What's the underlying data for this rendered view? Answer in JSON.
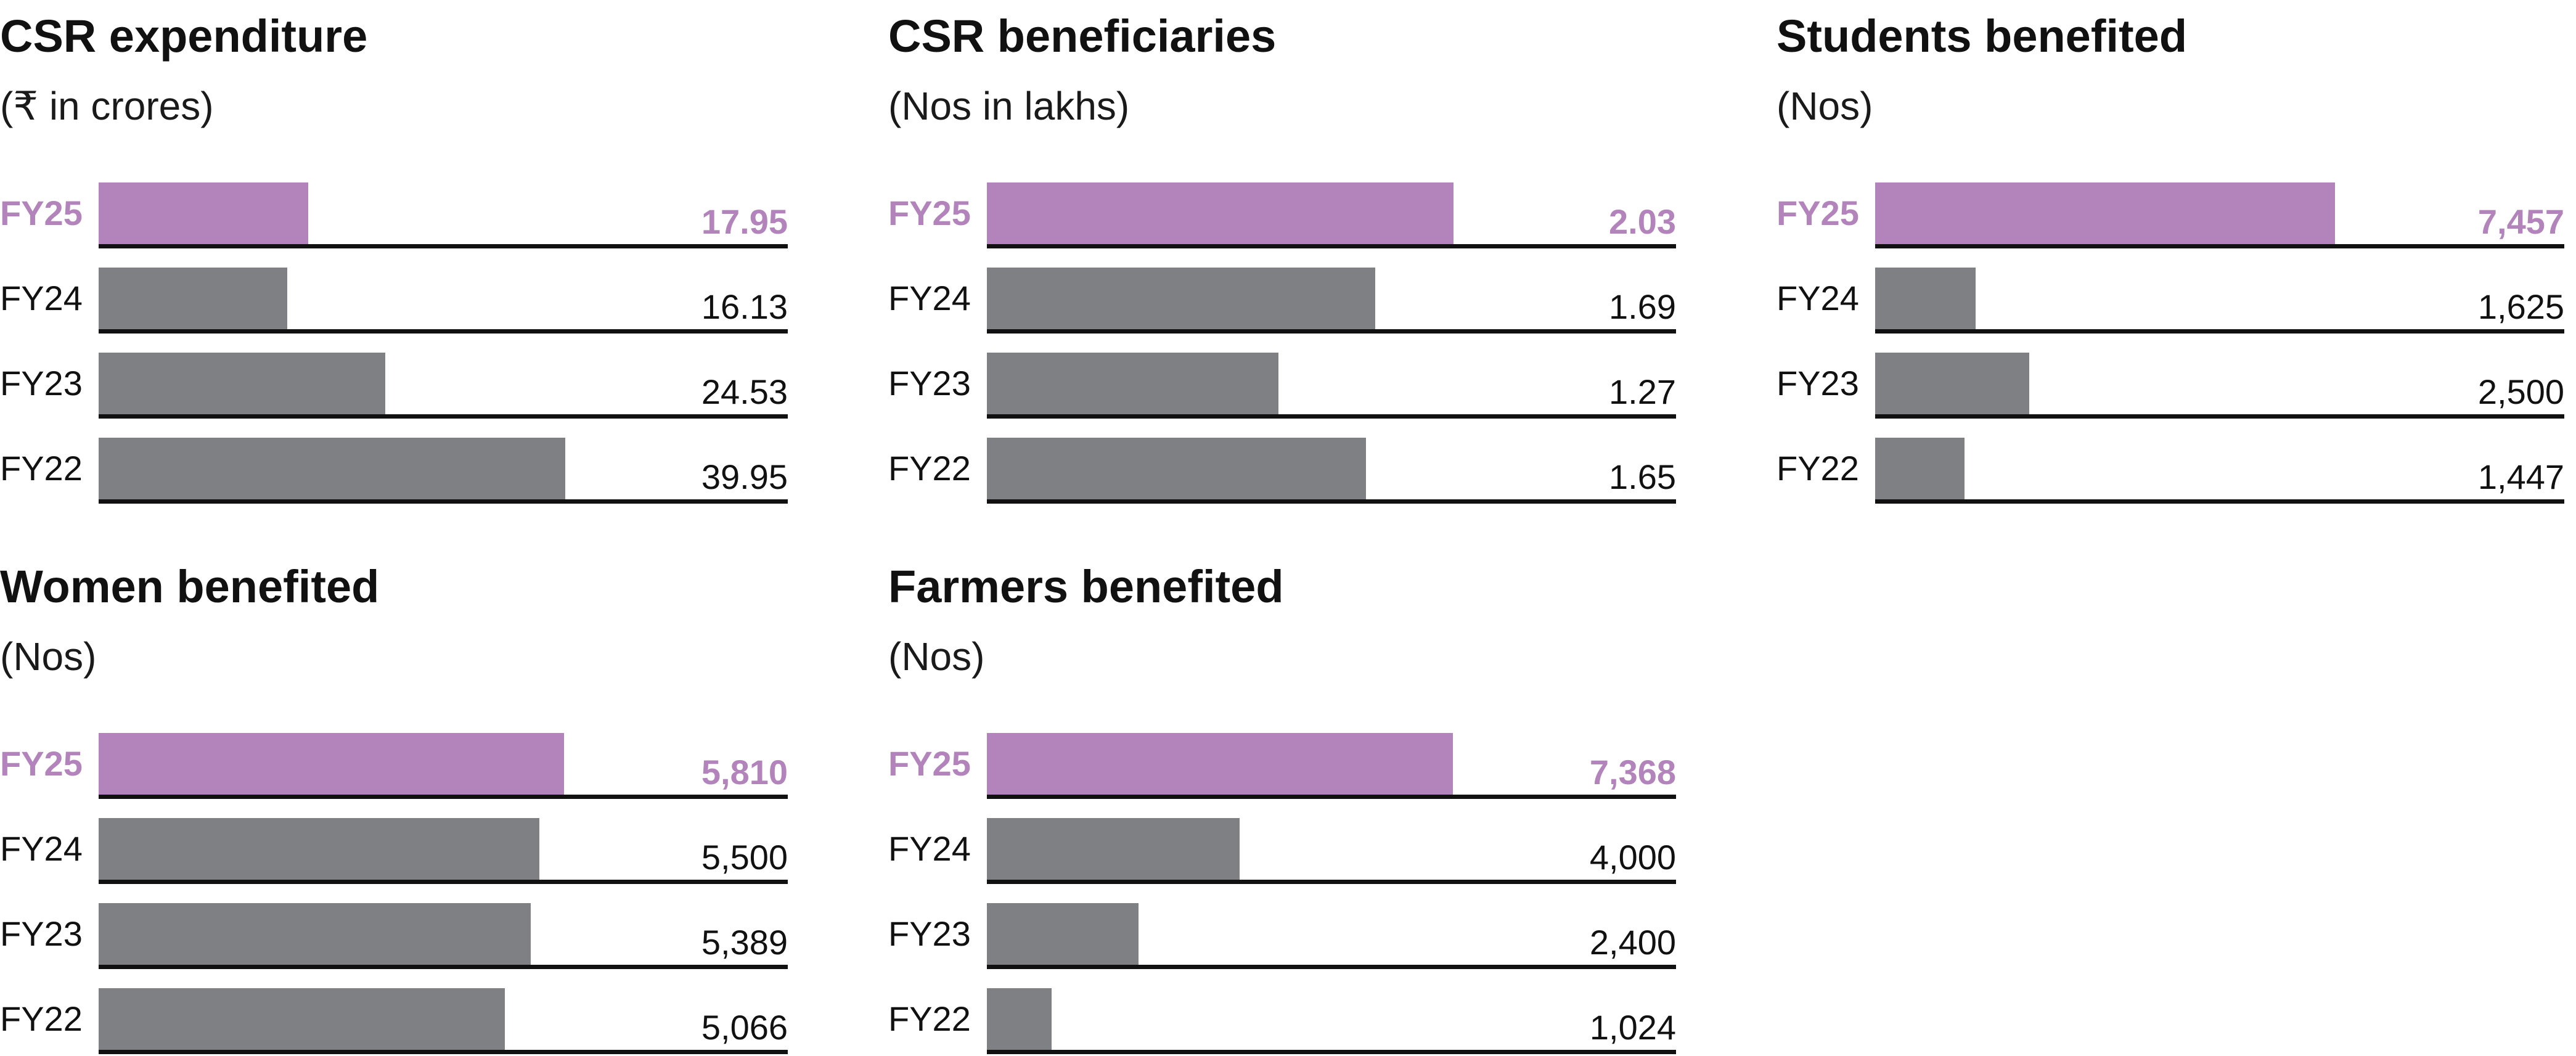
{
  "colors": {
    "highlight": "#b383bb",
    "bar": "#7f8084",
    "text": "#111111",
    "baseline": "#111111"
  },
  "chart_data": [
    {
      "type": "bar",
      "orientation": "horizontal",
      "title": "CSR expenditure",
      "subtitle": "(₹ in crores)",
      "categories": [
        "FY25",
        "FY24",
        "FY23",
        "FY22"
      ],
      "values": [
        17.95,
        16.13,
        24.53,
        39.95
      ],
      "value_labels": [
        "17.95",
        "16.13",
        "24.53",
        "39.95"
      ],
      "highlight": "FY25",
      "xlim": [
        0,
        59
      ],
      "grid": false
    },
    {
      "type": "bar",
      "orientation": "horizontal",
      "title": "CSR beneficiaries",
      "subtitle": "(Nos in lakhs)",
      "categories": [
        "FY25",
        "FY24",
        "FY23",
        "FY22"
      ],
      "values": [
        2.03,
        1.69,
        1.27,
        1.65
      ],
      "value_labels": [
        "2.03",
        "1.69",
        "1.27",
        "1.65"
      ],
      "highlight": "FY25",
      "xlim": [
        0,
        3.0
      ],
      "grid": false
    },
    {
      "type": "bar",
      "orientation": "horizontal",
      "title": "Students benefited",
      "subtitle": "(Nos)",
      "categories": [
        "FY25",
        "FY24",
        "FY23",
        "FY22"
      ],
      "values": [
        7457,
        1625,
        2500,
        1447
      ],
      "value_labels": [
        "7,457",
        "1,625",
        "2,500",
        "1,447"
      ],
      "highlight": "FY25",
      "xlim": [
        0,
        11180
      ],
      "grid": false
    },
    {
      "type": "bar",
      "orientation": "horizontal",
      "title": "Women benefited",
      "subtitle": "(Nos)",
      "categories": [
        "FY25",
        "FY24",
        "FY23",
        "FY22"
      ],
      "values": [
        5810,
        5500,
        5389,
        5066
      ],
      "value_labels": [
        "5,810",
        "5,500",
        "5,389",
        "5,066"
      ],
      "highlight": "FY25",
      "xlim": [
        0,
        8600
      ],
      "grid": false
    },
    {
      "type": "bar",
      "orientation": "horizontal",
      "title": "Farmers benefited",
      "subtitle": "(Nos)",
      "categories": [
        "FY25",
        "FY24",
        "FY23",
        "FY22"
      ],
      "values": [
        7368,
        4000,
        2400,
        1024
      ],
      "value_labels": [
        "7,368",
        "4,000",
        "2,400",
        "1,024"
      ],
      "highlight": "FY25",
      "xlim": [
        0,
        10900
      ],
      "grid": false
    }
  ]
}
